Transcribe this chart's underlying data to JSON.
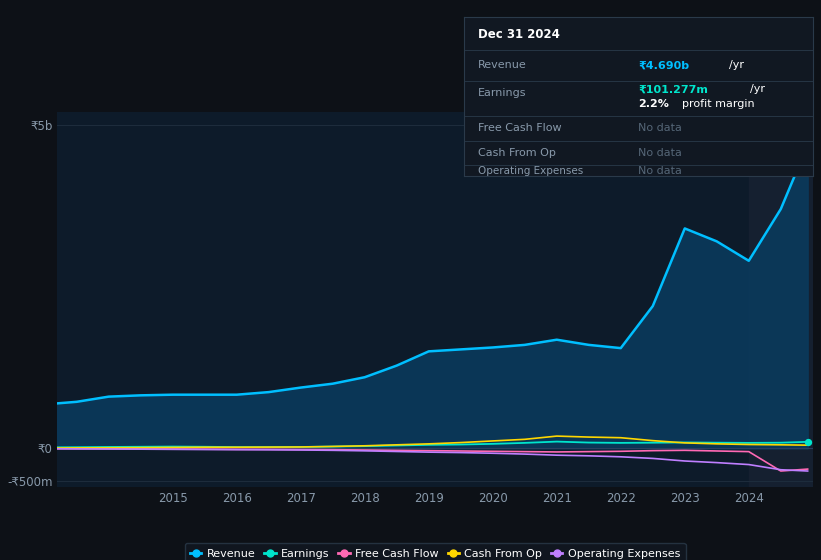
{
  "background_color": "#0d1117",
  "plot_bg_color": "#0d1b2a",
  "title": "Dec 31 2024",
  "years": [
    2013.0,
    2013.5,
    2014.0,
    2014.5,
    2015.0,
    2015.5,
    2016.0,
    2016.5,
    2017.0,
    2017.5,
    2018.0,
    2018.5,
    2019.0,
    2019.5,
    2020.0,
    2020.5,
    2021.0,
    2021.5,
    2022.0,
    2022.5,
    2023.0,
    2023.5,
    2024.0,
    2024.5,
    2024.92
  ],
  "revenue": [
    680,
    720,
    800,
    820,
    830,
    830,
    830,
    870,
    940,
    1000,
    1100,
    1280,
    1500,
    1530,
    1560,
    1600,
    1680,
    1600,
    1550,
    2200,
    3400,
    3200,
    2900,
    3700,
    4690
  ],
  "earnings": [
    15,
    18,
    22,
    25,
    28,
    25,
    20,
    20,
    22,
    28,
    35,
    45,
    55,
    60,
    70,
    85,
    105,
    90,
    85,
    88,
    92,
    88,
    85,
    88,
    101
  ],
  "free_cash_flow": [
    -5,
    -5,
    -5,
    -8,
    -10,
    -12,
    -15,
    -15,
    -18,
    -20,
    -25,
    -30,
    -35,
    -40,
    -45,
    -50,
    -55,
    -50,
    -45,
    -35,
    -30,
    -40,
    -50,
    -350,
    -320
  ],
  "cash_from_op": [
    5,
    8,
    10,
    12,
    15,
    18,
    18,
    20,
    22,
    30,
    40,
    55,
    70,
    90,
    115,
    140,
    190,
    175,
    165,
    120,
    85,
    70,
    60,
    55,
    50
  ],
  "operating_expenses": [
    -5,
    -8,
    -10,
    -12,
    -15,
    -18,
    -20,
    -22,
    -25,
    -30,
    -38,
    -48,
    -58,
    -65,
    -75,
    -88,
    -105,
    -115,
    -130,
    -155,
    -195,
    -220,
    -250,
    -330,
    -350
  ],
  "ylim": [
    -600,
    5200
  ],
  "ytick_positions": [
    -500,
    0,
    5000
  ],
  "ytick_labels": [
    "-₹500m",
    "₹0",
    "₹5b"
  ],
  "xlabel_years": [
    2015,
    2016,
    2017,
    2018,
    2019,
    2020,
    2021,
    2022,
    2023,
    2024
  ],
  "revenue_color": "#00bfff",
  "earnings_color": "#00e5cc",
  "fcf_color": "#ff69b4",
  "cashfromop_color": "#ffd700",
  "opex_color": "#bf7fff",
  "grid_color": "#1e2d3d",
  "info_box_bg": "#111822",
  "info_box_border": "#2a3a4a",
  "legend_bg": "#111822",
  "legend_border": "#2a3a4a",
  "revenue_fill_color": "#0a3a5c",
  "highlight_start_year": 2024.0,
  "highlight_color": "#152030",
  "xmin": 2013.2,
  "xmax": 2025.0
}
